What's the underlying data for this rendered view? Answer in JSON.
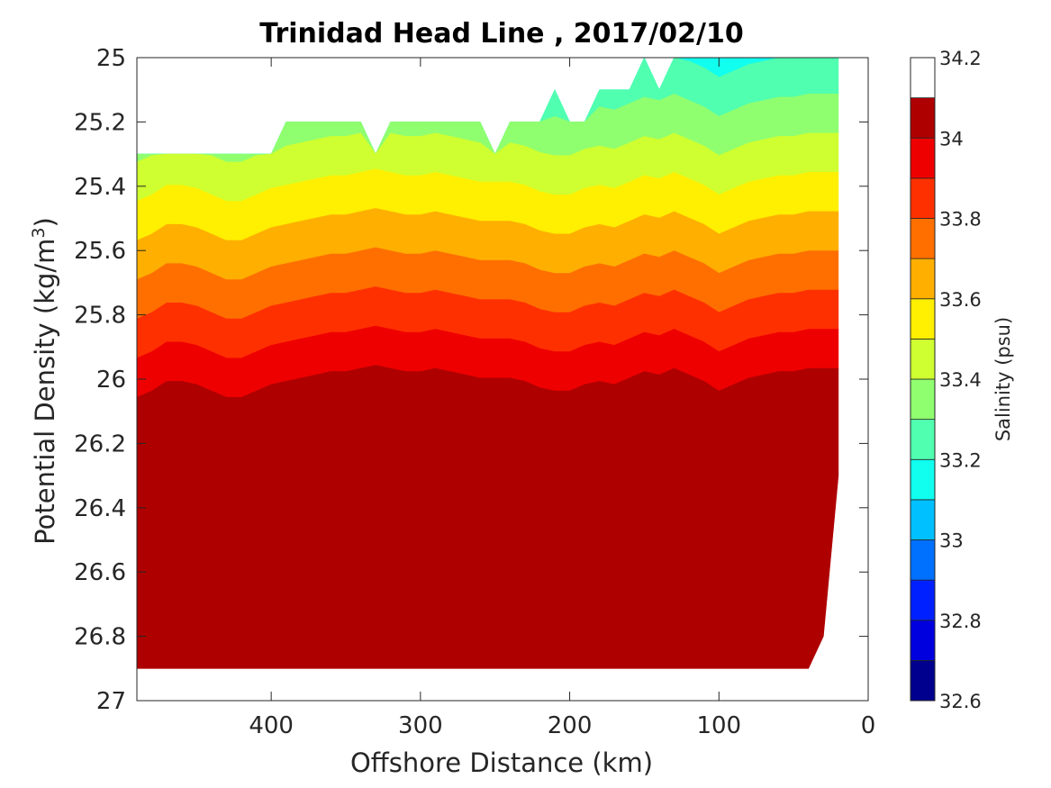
{
  "chart_data": {
    "type": "filled-contour",
    "title": "Trinidad Head Line , 2017/02/10",
    "xlabel": "Offshore Distance (km)",
    "ylabel": "Potential Density (kg/m³)",
    "ylabel_parts": {
      "main": "Potential Density (kg/m",
      "sup": "3",
      "close": ")"
    },
    "xlim": [
      490,
      0
    ],
    "x_direction": "reversed",
    "ylim": [
      25,
      27
    ],
    "y_direction": "reversed",
    "xticks": [
      400,
      300,
      200,
      100,
      0
    ],
    "yticks": [
      25,
      25.2,
      25.4,
      25.6,
      25.8,
      26,
      26.2,
      26.4,
      26.6,
      26.8,
      27
    ],
    "yticklabels": [
      "25",
      "25.2",
      "25.4",
      "25.6",
      "25.8",
      "26",
      "26.2",
      "26.4",
      "26.6",
      "26.8",
      "27"
    ],
    "colorbar": {
      "label": "Salinity (psu)",
      "range": [
        32.6,
        34.2
      ],
      "level_step": 0.1,
      "ticks": [
        32.6,
        32.8,
        33,
        33.2,
        33.4,
        33.6,
        33.8,
        34,
        34.2
      ],
      "ticklabels": [
        "32.6",
        "32.8",
        "33",
        "33.2",
        "33.4",
        "33.6",
        "33.8",
        "34",
        "34.2"
      ],
      "colors": [
        "#00008f",
        "#0000df",
        "#0020ff",
        "#0070ff",
        "#00c0ff",
        "#10ffef",
        "#50ffaf",
        "#90ff6f",
        "#cfff30",
        "#ffef00",
        "#ffaf00",
        "#ff6f00",
        "#ff3000",
        "#ef0000",
        "#af0000"
      ]
    },
    "stations_km": [
      490,
      480,
      470,
      460,
      450,
      440,
      430,
      420,
      410,
      400,
      390,
      380,
      370,
      360,
      350,
      340,
      330,
      320,
      310,
      300,
      290,
      280,
      270,
      260,
      250,
      240,
      230,
      220,
      210,
      200,
      190,
      180,
      170,
      160,
      150,
      140,
      130,
      120,
      110,
      100,
      90,
      80,
      70,
      60,
      50,
      40,
      30,
      20
    ],
    "surface_density": [
      25.3,
      25.3,
      25.3,
      25.3,
      25.3,
      25.3,
      25.3,
      25.3,
      25.3,
      25.3,
      25.2,
      25.2,
      25.2,
      25.2,
      25.2,
      25.2,
      25.3,
      25.2,
      25.2,
      25.2,
      25.2,
      25.2,
      25.2,
      25.2,
      25.3,
      25.2,
      25.2,
      25.2,
      25.1,
      25.2,
      25.2,
      25.1,
      25.1,
      25.1,
      25.0,
      25.1,
      25.0,
      25.0,
      25.0,
      25.0,
      25.0,
      25.0,
      25.0,
      25.0,
      25.0,
      25.0,
      25.0,
      25.0
    ],
    "bottom_density": [
      26.9,
      26.9,
      26.9,
      26.9,
      26.9,
      26.9,
      26.9,
      26.9,
      26.9,
      26.9,
      26.9,
      26.9,
      26.9,
      26.9,
      26.9,
      26.9,
      26.9,
      26.9,
      26.9,
      26.9,
      26.9,
      26.9,
      26.9,
      26.9,
      26.9,
      26.9,
      26.9,
      26.9,
      26.9,
      26.9,
      26.9,
      26.9,
      26.9,
      26.9,
      26.9,
      26.9,
      26.9,
      26.9,
      26.9,
      26.9,
      26.9,
      26.9,
      26.9,
      26.9,
      26.9,
      26.9,
      26.8,
      26.3
    ],
    "salinity_base": 33.15,
    "salinity_gradient_per_density": 0.82,
    "density_offset_by_station": [
      0.02,
      0.0,
      -0.03,
      -0.03,
      -0.02,
      0.0,
      0.02,
      0.02,
      0.0,
      -0.02,
      -0.03,
      -0.04,
      -0.05,
      -0.06,
      -0.06,
      -0.07,
      -0.08,
      -0.07,
      -0.06,
      -0.06,
      -0.07,
      -0.06,
      -0.05,
      -0.04,
      -0.04,
      -0.04,
      -0.03,
      -0.01,
      0.0,
      0.0,
      -0.02,
      -0.03,
      -0.02,
      -0.04,
      -0.06,
      -0.05,
      -0.07,
      -0.05,
      -0.03,
      0.0,
      -0.02,
      -0.04,
      -0.05,
      -0.06,
      -0.06,
      -0.07,
      -0.07,
      -0.07
    ]
  }
}
